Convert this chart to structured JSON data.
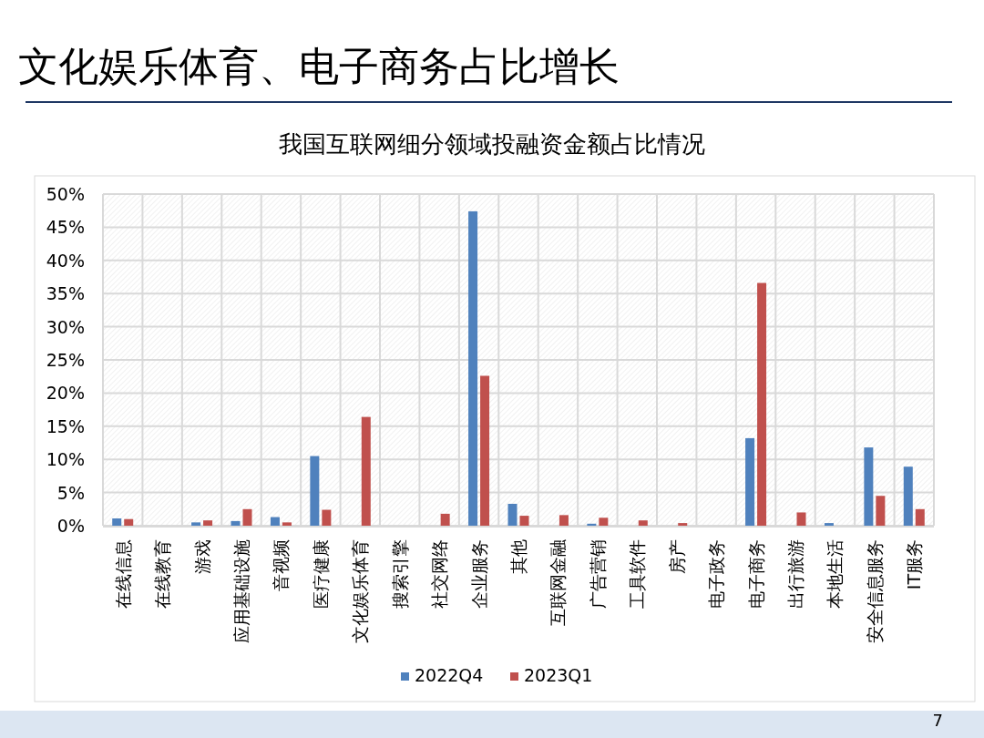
{
  "chart_data": {
    "type": "bar",
    "title": "文化娱乐体育、电子商务占比增长",
    "subtitle": "我国互联网细分领域投融资金额占比情况",
    "categories": [
      "在线信息",
      "在线教育",
      "游戏",
      "应用基础设施",
      "音视频",
      "医疗健康",
      "文化娱乐体育",
      "搜索引擎",
      "社交网络",
      "企业服务",
      "其他",
      "互联网金融",
      "广告营销",
      "工具软件",
      "房产",
      "电子政务",
      "电子商务",
      "出行旅游",
      "本地生活",
      "安全信息服务",
      "IT服务"
    ],
    "series": [
      {
        "name": "2022Q4",
        "color": "#4f81bd",
        "values": [
          1.1,
          0,
          0.5,
          0.7,
          1.3,
          10.5,
          0,
          0,
          0,
          47.4,
          3.3,
          0,
          0.3,
          0,
          0,
          0,
          13.2,
          0,
          0.4,
          11.8,
          8.9
        ]
      },
      {
        "name": "2023Q1",
        "color": "#c0504d",
        "values": [
          1.0,
          0,
          0.8,
          2.5,
          0.5,
          2.4,
          16.4,
          0,
          1.8,
          22.6,
          1.5,
          1.6,
          1.2,
          0.8,
          0.4,
          0,
          36.6,
          2.0,
          0,
          4.5,
          2.5
        ]
      }
    ],
    "ylim": [
      0,
      50
    ],
    "yticks": [
      {
        "value": 0,
        "label": "0%"
      },
      {
        "value": 5,
        "label": "5%"
      },
      {
        "value": 10,
        "label": "10%"
      },
      {
        "value": 15,
        "label": "15%"
      },
      {
        "value": 20,
        "label": "20%"
      },
      {
        "value": 25,
        "label": "25%"
      },
      {
        "value": 30,
        "label": "30%"
      },
      {
        "value": 35,
        "label": "35%"
      },
      {
        "value": 40,
        "label": "40%"
      },
      {
        "value": 45,
        "label": "45%"
      },
      {
        "value": 50,
        "label": "50%"
      }
    ],
    "grid": true,
    "legend": "bottom",
    "annotations": [
      "7"
    ]
  }
}
